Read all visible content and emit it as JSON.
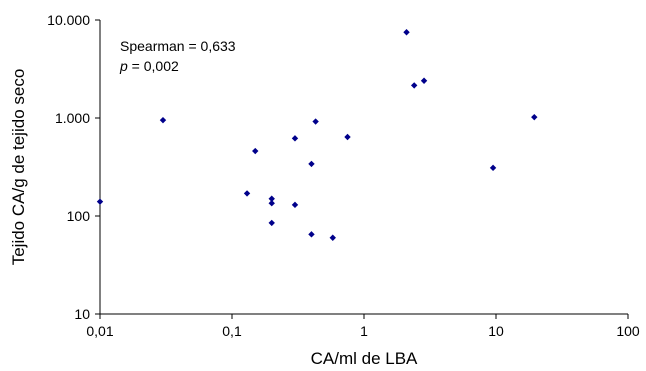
{
  "chart_data": {
    "type": "scatter",
    "title": "",
    "xlabel": "CA/ml de LBA",
    "ylabel": "Tejido CA/g de tejido seco",
    "x_scale": "log",
    "y_scale": "log",
    "xlim": [
      0.01,
      100
    ],
    "ylim": [
      10,
      10000
    ],
    "x_ticks": [
      {
        "value": 0.01,
        "label": "0,01"
      },
      {
        "value": 0.1,
        "label": "0,1"
      },
      {
        "value": 1,
        "label": "1"
      },
      {
        "value": 10,
        "label": "10"
      },
      {
        "value": 100,
        "label": "100"
      }
    ],
    "y_ticks": [
      {
        "value": 10,
        "label": "10"
      },
      {
        "value": 100,
        "label": "100"
      },
      {
        "value": 1000,
        "label": "1.000"
      },
      {
        "value": 10000,
        "label": "10.000"
      }
    ],
    "grid": false,
    "legend": "none",
    "marker_color": "#00008B",
    "annotation": {
      "stat_line": "Spearman = 0,633",
      "p_symbol": "p",
      "p_rest": " = 0,002"
    },
    "points": [
      {
        "x": 0.01,
        "y": 140
      },
      {
        "x": 0.03,
        "y": 950
      },
      {
        "x": 0.13,
        "y": 170
      },
      {
        "x": 0.15,
        "y": 460
      },
      {
        "x": 0.2,
        "y": 150
      },
      {
        "x": 0.2,
        "y": 135
      },
      {
        "x": 0.2,
        "y": 85
      },
      {
        "x": 0.3,
        "y": 620
      },
      {
        "x": 0.3,
        "y": 130
      },
      {
        "x": 0.4,
        "y": 340
      },
      {
        "x": 0.4,
        "y": 65
      },
      {
        "x": 0.43,
        "y": 920
      },
      {
        "x": 0.58,
        "y": 60
      },
      {
        "x": 0.75,
        "y": 640
      },
      {
        "x": 2.1,
        "y": 7500
      },
      {
        "x": 2.4,
        "y": 2150
      },
      {
        "x": 2.85,
        "y": 2400
      },
      {
        "x": 9.5,
        "y": 310
      },
      {
        "x": 19.5,
        "y": 1020
      }
    ]
  }
}
